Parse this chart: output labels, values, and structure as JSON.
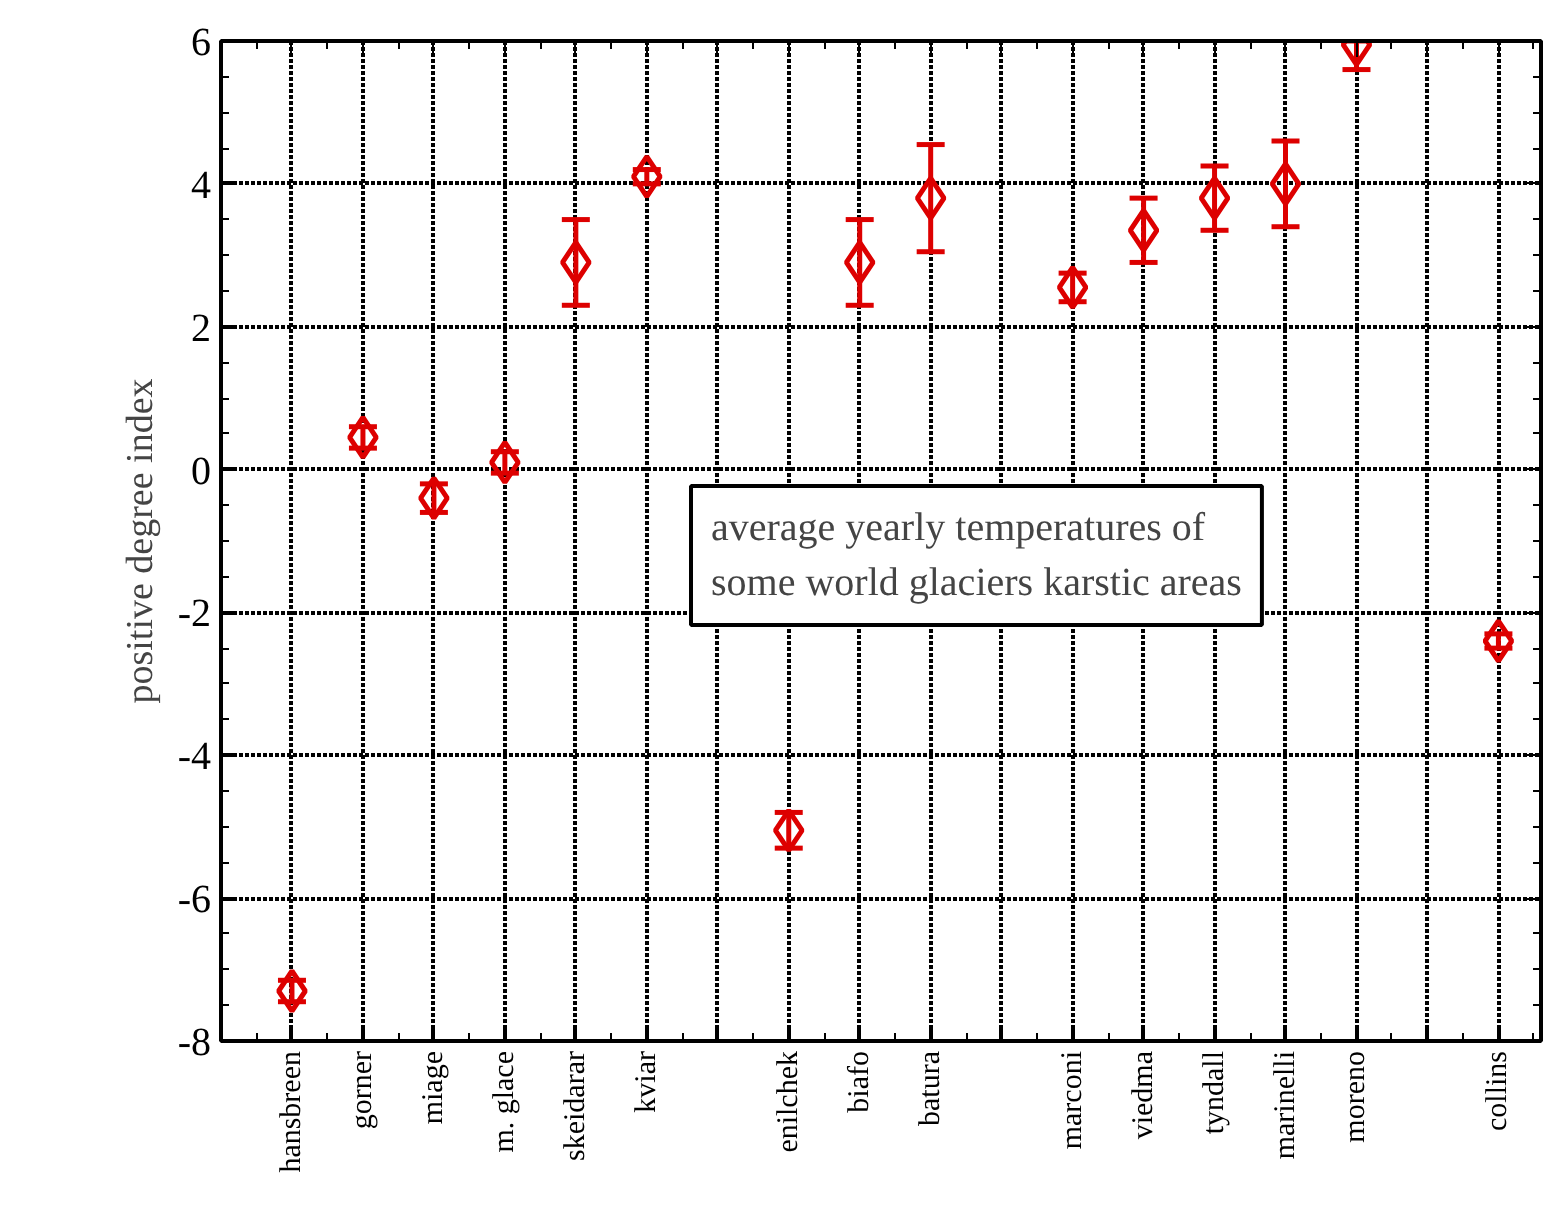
{
  "chart_data": {
    "type": "scatter",
    "ylabel": "positive degree index",
    "categories": [
      "hansbreen",
      "gorner",
      "miage",
      "m. glace",
      "skeidarar",
      "kviar",
      null,
      "enilchek",
      "biafo",
      "batura",
      null,
      "marconi",
      "viedma",
      "tyndall",
      "marinelli",
      "moreno",
      null,
      "collins"
    ],
    "series": [
      {
        "color": "#dd0000",
        "values": [
          -7.3,
          0.45,
          -0.4,
          0.1,
          2.9,
          4.1,
          null,
          -5.05,
          2.9,
          3.8,
          null,
          2.55,
          3.35,
          3.8,
          4.0,
          5.95,
          null,
          -2.4
        ],
        "errors": [
          0.15,
          0.15,
          0.2,
          0.15,
          0.6,
          0.1,
          null,
          0.25,
          0.6,
          0.75,
          null,
          0.2,
          0.45,
          0.45,
          0.6,
          [
            5.6,
            6.0
          ],
          null,
          0.1
        ]
      }
    ],
    "ylim": [
      -8,
      6
    ],
    "yticks": [
      -8,
      -6,
      -4,
      -2,
      0,
      2,
      4,
      6
    ],
    "grid": true,
    "marker": "diamond",
    "annotations": [
      "average yearly temperatures of\nsome world glaciers karstic areas"
    ]
  }
}
